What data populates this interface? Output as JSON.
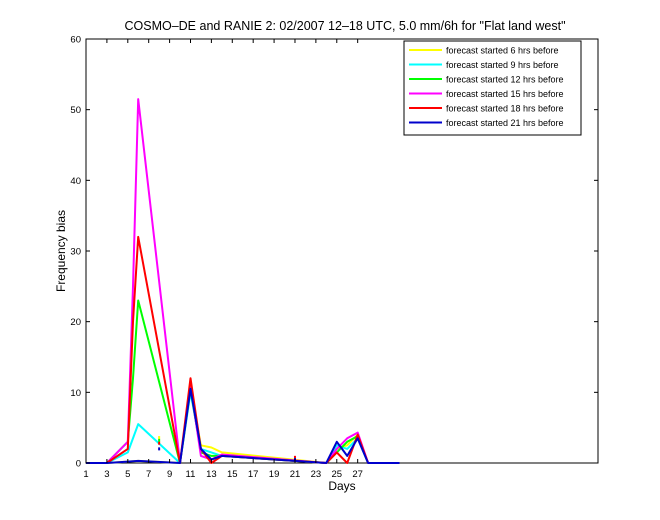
{
  "chart_data": {
    "type": "line",
    "title": "COSMO–DE and RANIE 2: 02/2007 12–18 UTC, 5.0 mm/6h for \"Flat land west\"",
    "xlabel": "Days",
    "ylabel": "Frequency bias",
    "xlim": [
      1,
      50
    ],
    "ylim": [
      0,
      60
    ],
    "xticks": [
      1,
      3,
      5,
      7,
      9,
      11,
      13,
      15,
      17,
      19,
      21,
      23,
      25,
      27
    ],
    "yticks": [
      0,
      10,
      20,
      30,
      40,
      50,
      60
    ],
    "grid": false,
    "legend_position": "top-right",
    "series": [
      {
        "name": "forecast started  6 hrs before",
        "color": "#ffff00",
        "points": [
          [
            1,
            0
          ],
          [
            2,
            0
          ],
          [
            3,
            0
          ],
          [
            5,
            0.2
          ],
          [
            6,
            0.3
          ],
          [
            10,
            0
          ],
          [
            11,
            10.5
          ],
          [
            12,
            2.5
          ],
          [
            13,
            2.2
          ],
          [
            14,
            1.5
          ],
          [
            24,
            0
          ],
          [
            25,
            2.0
          ],
          [
            26,
            2.5
          ],
          [
            27,
            4.0
          ],
          [
            28,
            0
          ],
          [
            31,
            0
          ]
        ]
      },
      {
        "name": "forecast started  9 hrs before",
        "color": "#00ffff",
        "points": [
          [
            1,
            0
          ],
          [
            2,
            0
          ],
          [
            3,
            0
          ],
          [
            5,
            1.5
          ],
          [
            6,
            5.5
          ],
          [
            10,
            0
          ],
          [
            11,
            10.0
          ],
          [
            12,
            2.0
          ],
          [
            13,
            1.5
          ],
          [
            14,
            1.0
          ],
          [
            24,
            0
          ],
          [
            25,
            2.5
          ],
          [
            26,
            2.0
          ],
          [
            27,
            3.5
          ],
          [
            28,
            0
          ],
          [
            31,
            0
          ]
        ]
      },
      {
        "name": "forecast started 12 hrs before",
        "color": "#00ff00",
        "points": [
          [
            1,
            0
          ],
          [
            2,
            0
          ],
          [
            3,
            0
          ],
          [
            5,
            3.0
          ],
          [
            5.5,
            12.0
          ],
          [
            6,
            23.0
          ],
          [
            10,
            0
          ],
          [
            11,
            10.5
          ],
          [
            12,
            1.5
          ],
          [
            13,
            1.0
          ],
          [
            14,
            1.0
          ],
          [
            24,
            0
          ],
          [
            25,
            1.5
          ],
          [
            26,
            3.0
          ],
          [
            27,
            3.8
          ],
          [
            28,
            0
          ],
          [
            31,
            0
          ]
        ]
      },
      {
        "name": "forecast started 15 hrs before",
        "color": "#ff00ff",
        "points": [
          [
            1,
            0
          ],
          [
            2,
            0
          ],
          [
            3,
            0
          ],
          [
            5,
            3.0
          ],
          [
            5.5,
            25.0
          ],
          [
            6,
            51.5
          ],
          [
            10,
            0
          ],
          [
            11,
            11.0
          ],
          [
            12,
            1.0
          ],
          [
            13,
            0.5
          ],
          [
            14,
            1.2
          ],
          [
            24,
            0
          ],
          [
            25,
            2.0
          ],
          [
            26,
            3.5
          ],
          [
            27,
            4.3
          ],
          [
            28,
            0
          ],
          [
            31,
            0
          ]
        ]
      },
      {
        "name": "forecast started 18 hrs before",
        "color": "#ff0000",
        "points": [
          [
            1,
            0
          ],
          [
            2,
            0
          ],
          [
            3,
            0
          ],
          [
            5,
            2.0
          ],
          [
            5.5,
            20.0
          ],
          [
            6,
            32.0
          ],
          [
            10,
            0
          ],
          [
            11,
            12.0
          ],
          [
            12,
            2.0
          ],
          [
            13,
            0
          ],
          [
            14,
            1.0
          ],
          [
            24,
            0
          ],
          [
            25,
            1.5
          ],
          [
            26,
            0
          ],
          [
            27,
            4.0
          ],
          [
            28,
            0
          ],
          [
            31,
            0
          ]
        ]
      },
      {
        "name": "forecast started 21 hrs before",
        "color": "#0000cc",
        "points": [
          [
            1,
            0
          ],
          [
            2,
            0
          ],
          [
            3,
            0
          ],
          [
            5,
            0.2
          ],
          [
            6,
            0.3
          ],
          [
            10,
            0
          ],
          [
            11,
            10.5
          ],
          [
            12,
            2.0
          ],
          [
            13,
            0.5
          ],
          [
            14,
            1.0
          ],
          [
            24,
            0
          ],
          [
            25,
            3.0
          ],
          [
            26,
            1.0
          ],
          [
            27,
            3.5
          ],
          [
            28,
            0
          ],
          [
            31,
            0
          ]
        ]
      }
    ],
    "markers": [
      {
        "x": 8,
        "y": 3.6,
        "color": "#ffff00"
      },
      {
        "x": 8,
        "y": 3.2,
        "color": "#00ff00"
      },
      {
        "x": 8,
        "y": 2.8,
        "color": "#ff0000"
      },
      {
        "x": 8,
        "y": 2.0,
        "color": "#0000cc"
      },
      {
        "x": 21,
        "y": 0.8,
        "color": "#ff0000"
      },
      {
        "x": 21,
        "y": 0.5,
        "color": "#0000cc"
      }
    ]
  }
}
